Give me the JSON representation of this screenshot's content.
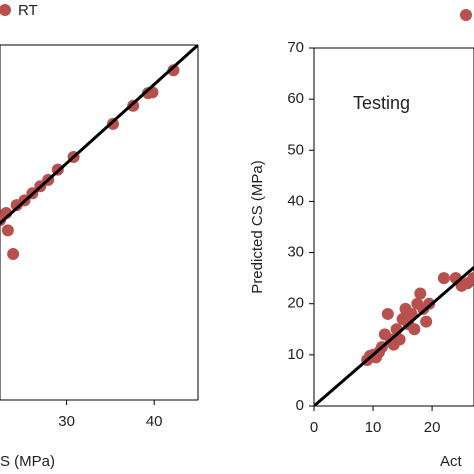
{
  "chart_data": [
    {
      "type": "scatter",
      "x_label": "S (MPa)",
      "series": [
        {
          "name": "RT",
          "color": "#b8514d",
          "x": [
            42.2,
            39.8,
            39.3,
            37.6,
            35.3,
            30.8,
            29.0,
            27.9,
            27.0,
            26.1,
            25.2,
            24.3,
            23.1,
            22.4,
            23.3,
            23.9
          ],
          "y": [
            41.8,
            39.0,
            38.9,
            37.3,
            35.0,
            30.8,
            29.2,
            27.9,
            27.1,
            26.2,
            25.3,
            24.7,
            23.7,
            22.8,
            21.5,
            18.5
          ]
        }
      ],
      "xlim": [
        22.4,
        45
      ],
      "xticks": [
        30,
        40
      ],
      "ylim": [
        0,
        45
      ]
    },
    {
      "type": "scatter",
      "x_label": "Act",
      "y_label": "Predicted CS (MPa)",
      "annotation": "Testing",
      "series": [
        {
          "color": "#b8514d",
          "x": [
            9,
            9.5,
            10,
            10.5,
            11,
            11.5,
            12,
            12.5,
            13,
            13.5,
            14,
            14.5,
            15,
            15.5,
            16,
            16.5,
            17,
            17.5,
            18,
            18.5,
            19,
            19.5,
            22,
            24,
            25,
            26,
            27
          ],
          "y": [
            9,
            9.8,
            10,
            9.5,
            10.5,
            11.5,
            14,
            18,
            13,
            12,
            15,
            13,
            17,
            19,
            16,
            18,
            15,
            20,
            22,
            19,
            16.5,
            20,
            25,
            25,
            23.5,
            24,
            25
          ]
        }
      ],
      "xlim": [
        0,
        27.1
      ],
      "xticks": [
        0,
        10,
        20
      ],
      "ylim": [
        0,
        70
      ],
      "yticks": [
        0,
        10,
        20,
        30,
        40,
        50,
        60,
        70
      ]
    }
  ]
}
